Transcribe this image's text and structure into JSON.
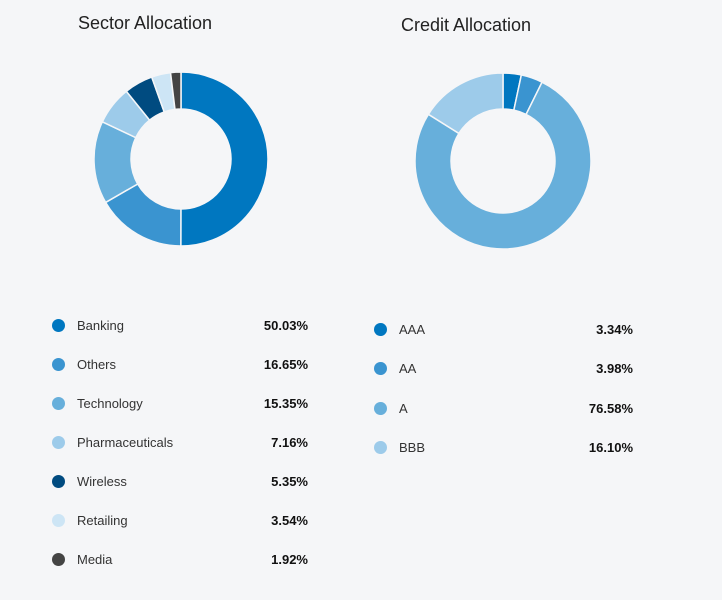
{
  "chart_data": [
    {
      "type": "pie",
      "title": "Sector Allocation",
      "categories": [
        "Banking",
        "Others",
        "Technology",
        "Pharmaceuticals",
        "Wireless",
        "Retailing",
        "Media"
      ],
      "values": [
        50.03,
        16.65,
        15.35,
        7.16,
        5.35,
        3.54,
        1.92
      ],
      "labels": [
        "50.03%",
        "16.65%",
        "15.35%",
        "7.16%",
        "5.35%",
        "3.54%",
        "1.92%"
      ],
      "colors": [
        "#0077c0",
        "#3a94d0",
        "#67afdb",
        "#9dcbea",
        "#004b80",
        "#cde5f5",
        "#444444"
      ]
    },
    {
      "type": "pie",
      "title": "Credit Allocation",
      "categories": [
        "AAA",
        "AA",
        "A",
        "BBB"
      ],
      "values": [
        3.34,
        3.98,
        76.58,
        16.1
      ],
      "labels": [
        "3.34%",
        "3.98%",
        "76.58%",
        "16.10%"
      ],
      "colors": [
        "#0077c0",
        "#3a94d0",
        "#67afdb",
        "#9dcbea"
      ]
    }
  ]
}
